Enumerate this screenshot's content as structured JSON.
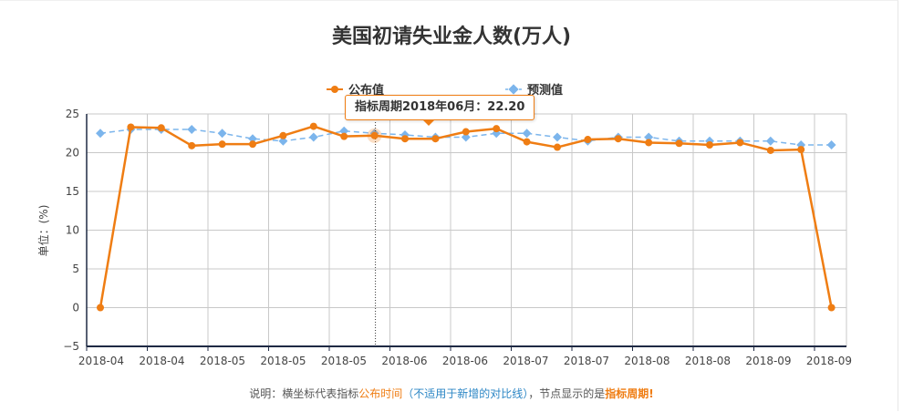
{
  "title": "美国初请失业金人数(万人)",
  "legend": {
    "actual": "公布值",
    "forecast": "预测值"
  },
  "tooltip": {
    "label": "指标周期2018年06月：22.20"
  },
  "note": {
    "prefix": "说明：横坐标代表指标",
    "highlight1": "公布时间",
    "paren": "（不适用于新增的对比线）",
    "mid": "，节点显示的是",
    "highlight2": "指标周期!"
  },
  "colors": {
    "actual": "#ef7d13",
    "forecast": "#7cb5ec",
    "grid": "#c8c8c8",
    "axis": "#1f2a44"
  },
  "chart_data": {
    "type": "line",
    "title": "美国初请失业金人数(万人)",
    "ylabel": "单位：(%)",
    "ylim": [
      -5,
      25
    ],
    "yticks": [
      -5,
      0,
      5,
      10,
      15,
      20,
      25
    ],
    "xtick_labels": [
      "2018-04",
      "2018-04",
      "2018-05",
      "2018-05",
      "2018-05",
      "2018-06",
      "2018-06",
      "2018-07",
      "2018-07",
      "2018-08",
      "2018-08",
      "2018-09",
      "2018-09"
    ],
    "series": [
      {
        "name": "公布值",
        "style": "solid",
        "values": [
          0,
          23.3,
          23.2,
          20.9,
          21.1,
          21.1,
          22.2,
          23.4,
          22.1,
          22.2,
          21.8,
          21.8,
          22.7,
          23.1,
          21.4,
          20.7,
          21.7,
          21.8,
          21.3,
          21.2,
          21.0,
          21.3,
          20.3,
          20.4,
          0
        ]
      },
      {
        "name": "预测值",
        "style": "dashed",
        "values": [
          22.5,
          23.0,
          23.0,
          23.0,
          22.5,
          21.8,
          21.5,
          22.0,
          22.8,
          22.5,
          22.3,
          22.0,
          22.0,
          22.5,
          22.5,
          22.0,
          21.5,
          22.0,
          22.0,
          21.5,
          21.5,
          21.5,
          21.5,
          21.0,
          21.0
        ]
      }
    ],
    "highlight_index": 9,
    "grid": true,
    "legend_position": "top-center"
  }
}
